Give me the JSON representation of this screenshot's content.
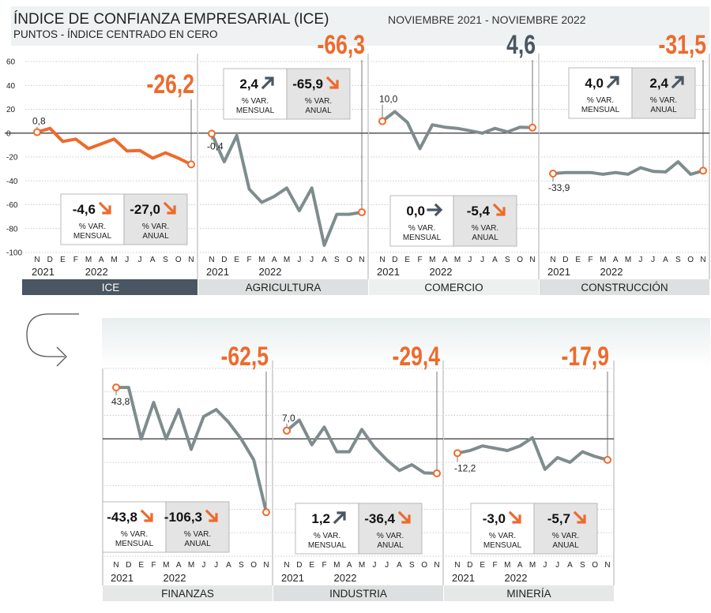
{
  "title": "ÍNDICE DE CONFIANZA EMPRESARIAL (ICE)",
  "subtitle": "PUNTOS - ÍNDICE CENTRADO EN CERO",
  "period": "NOVIEMBRE 2021 - NOVIEMBRE 2022",
  "colors": {
    "accent": "#ee6a2c",
    "gray": "#7f8c8d",
    "dark": "#4a5661",
    "band": "#dde0e0",
    "box": "#e4e4e4"
  },
  "month_letters": [
    "N",
    "D",
    "E",
    "F",
    "M",
    "A",
    "M",
    "J",
    "J",
    "A",
    "S",
    "O",
    "N"
  ],
  "box_caption": [
    "% VAR.",
    "MENSUAL",
    "% VAR.",
    "ANUAL"
  ],
  "chart_data": [
    {
      "type": "line",
      "panel": "ICE",
      "ylim": [
        -100,
        60
      ],
      "yticks": [
        "60",
        "40",
        "20",
        "0",
        "-20",
        "-40",
        "-60",
        "-80",
        "-100"
      ],
      "year_labels": [
        "2021",
        "2022"
      ],
      "x": [
        "N",
        "D",
        "E",
        "F",
        "M",
        "A",
        "M",
        "J",
        "J",
        "A",
        "S",
        "O",
        "N"
      ],
      "values": [
        0.8,
        4,
        -7,
        -5,
        -13,
        -9,
        -5,
        -15,
        -14.5,
        -21,
        -16.5,
        -21,
        -26.2
      ],
      "first_label": "0,8",
      "last_label": "-26,2",
      "monthly": "-4,6",
      "annual": "-27,0",
      "monthly_dir": "down",
      "annual_dir": "down"
    },
    {
      "type": "line",
      "panel": "AGRICULTURA",
      "ylim": [
        -100,
        60
      ],
      "year_labels": [
        "2021",
        "2022"
      ],
      "x": [
        "N",
        "D",
        "E",
        "F",
        "M",
        "A",
        "M",
        "J",
        "J",
        "A",
        "S",
        "O",
        "N"
      ],
      "values": [
        -0.4,
        -24,
        -2,
        -47,
        -58,
        -53,
        -46,
        -65,
        -46,
        -94,
        -68,
        -68,
        -66.3
      ],
      "first_label": "-0,4",
      "last_label": "-66,3",
      "monthly": "2,4",
      "annual": "-65,9",
      "monthly_dir": "up",
      "annual_dir": "down"
    },
    {
      "type": "line",
      "panel": "COMERCIO",
      "ylim": [
        -100,
        60
      ],
      "year_labels": [
        "2021",
        "2022"
      ],
      "x": [
        "N",
        "D",
        "E",
        "F",
        "M",
        "A",
        "M",
        "J",
        "J",
        "A",
        "S",
        "O",
        "N"
      ],
      "values": [
        10,
        18,
        9,
        -13,
        7,
        5,
        4,
        2,
        0,
        4,
        1,
        5,
        4.6
      ],
      "first_label": "10,0",
      "last_label": "4,6",
      "monthly": "0,0",
      "annual": "-5,4",
      "monthly_dir": "flat",
      "annual_dir": "down"
    },
    {
      "type": "line",
      "panel": "CONSTRUCCIÓN",
      "ylim": [
        -100,
        60
      ],
      "year_labels": [
        "2021",
        "2022"
      ],
      "x": [
        "N",
        "D",
        "E",
        "F",
        "M",
        "A",
        "M",
        "J",
        "J",
        "A",
        "S",
        "O",
        "N"
      ],
      "values": [
        -33.9,
        -33,
        -33,
        -33,
        -34.5,
        -33,
        -34.5,
        -29,
        -32,
        -32.5,
        -24,
        -34.5,
        -31.5
      ],
      "first_label": "-33,9",
      "last_label": "-31,5",
      "monthly": "4,0",
      "annual": "2,4",
      "monthly_dir": "up",
      "annual_dir": "up"
    },
    {
      "type": "line",
      "panel": "FINANZAS",
      "ylim": [
        -100,
        60
      ],
      "year_labels": [
        "2021",
        "2022"
      ],
      "x": [
        "N",
        "D",
        "E",
        "F",
        "M",
        "A",
        "M",
        "J",
        "J",
        "A",
        "S",
        "O",
        "N"
      ],
      "values": [
        43.8,
        43.8,
        0,
        31,
        0,
        25,
        -9,
        19,
        25,
        14,
        0,
        -18,
        -62.5
      ],
      "first_label": "43,8",
      "last_label": "-62,5",
      "monthly": "-43,8",
      "annual": "-106,3",
      "monthly_dir": "down",
      "annual_dir": "down"
    },
    {
      "type": "line",
      "panel": "INDUSTRIA",
      "ylim": [
        -100,
        60
      ],
      "year_labels": [
        "2021",
        "2022"
      ],
      "x": [
        "N",
        "D",
        "E",
        "F",
        "M",
        "A",
        "M",
        "J",
        "J",
        "A",
        "S",
        "O",
        "N"
      ],
      "values": [
        7,
        16,
        -5,
        10,
        -11,
        -11,
        8,
        -7,
        -18,
        -27,
        -22,
        -29,
        -29.4
      ],
      "first_label": "7,0",
      "last_label": "-29,4",
      "monthly": "1,2",
      "annual": "-36,4",
      "monthly_dir": "up",
      "annual_dir": "down"
    },
    {
      "type": "line",
      "panel": "MINERÍA",
      "ylim": [
        -100,
        60
      ],
      "year_labels": [
        "2021",
        "2022"
      ],
      "x": [
        "N",
        "D",
        "E",
        "F",
        "M",
        "A",
        "M",
        "J",
        "J",
        "A",
        "S",
        "O",
        "N"
      ],
      "values": [
        -12.2,
        -10,
        -6,
        -8,
        -10,
        -6,
        1,
        -26,
        -16,
        -20,
        -11,
        -15,
        -17.9
      ],
      "first_label": "-12,2",
      "last_label": "-17,9",
      "monthly": "-3,0",
      "annual": "-5,7",
      "monthly_dir": "down",
      "annual_dir": "down"
    }
  ]
}
